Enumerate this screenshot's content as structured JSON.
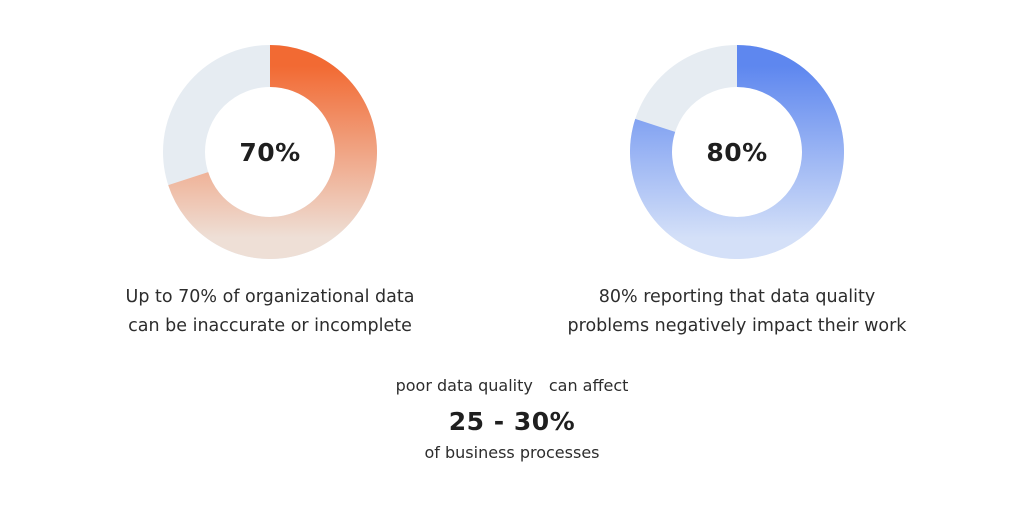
{
  "chart_data": [
    {
      "type": "pie",
      "style": "donut",
      "center_label": "70%",
      "values": [
        70,
        30
      ],
      "caption_lines": [
        "Up to 70% of organizational data",
        "can be inaccurate or incomplete"
      ],
      "colors": {
        "fill_start": "#f26a33",
        "fill_end": "#eedfd6",
        "track": "#e6ecf2"
      }
    },
    {
      "type": "pie",
      "style": "donut",
      "center_label": "80%",
      "values": [
        80,
        20
      ],
      "caption_lines": [
        "80% reporting that data quality",
        "problems negatively impact their work"
      ],
      "colors": {
        "fill_start": "#5e87ef",
        "fill_end": "#d4e0f8",
        "track": "#e6ecf2"
      }
    }
  ],
  "summary": {
    "line1_left": "poor data quality",
    "line1_right": "can affect",
    "highlight": "25 - 30%",
    "line3": "of business processes"
  }
}
